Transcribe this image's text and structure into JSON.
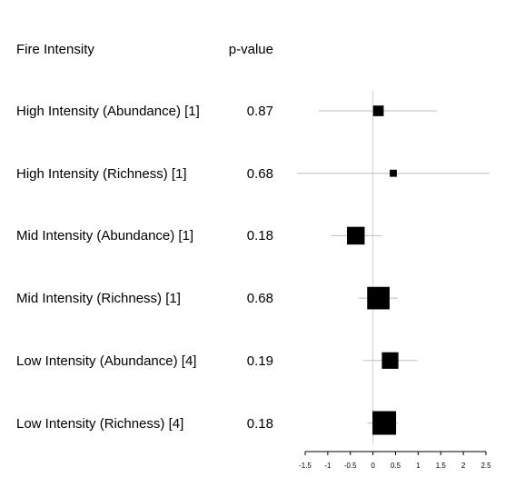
{
  "chart_data": {
    "type": "forest",
    "headers": {
      "label": "Fire Intensity",
      "pvalue": "p-value"
    },
    "rows": [
      {
        "label": "High Intensity (Abundance) [1]",
        "p_value": "0.87",
        "estimate": 0.12,
        "ci": [
          -1.2,
          1.42
        ],
        "weight": 0.45
      },
      {
        "label": "High Intensity (Richness) [1]",
        "p_value": "0.68",
        "estimate": 0.45,
        "ci": [
          -1.68,
          2.58
        ],
        "weight": 0.3
      },
      {
        "label": "Mid Intensity (Abundance) [1]",
        "p_value": "0.18",
        "estimate": -0.38,
        "ci": [
          -0.92,
          0.2
        ],
        "weight": 0.75
      },
      {
        "label": "Mid Intensity (Richness) [1]",
        "p_value": "0.68",
        "estimate": 0.12,
        "ci": [
          -0.32,
          0.55
        ],
        "weight": 0.95
      },
      {
        "label": "Low Intensity (Abundance) [4]",
        "p_value": "0.19",
        "estimate": 0.38,
        "ci": [
          -0.22,
          0.98
        ],
        "weight": 0.7
      },
      {
        "label": "Low Intensity (Richness) [4]",
        "p_value": "0.18",
        "estimate": 0.25,
        "ci": [
          -0.12,
          0.55
        ],
        "weight": 1.0
      }
    ],
    "x_ticks": [
      "-1.5",
      "-1",
      "-0.5",
      "0",
      "0.5",
      "1",
      "1.5",
      "2",
      "2.5"
    ],
    "xlim": [
      -1.5,
      2.5
    ],
    "reference_line": 0
  }
}
